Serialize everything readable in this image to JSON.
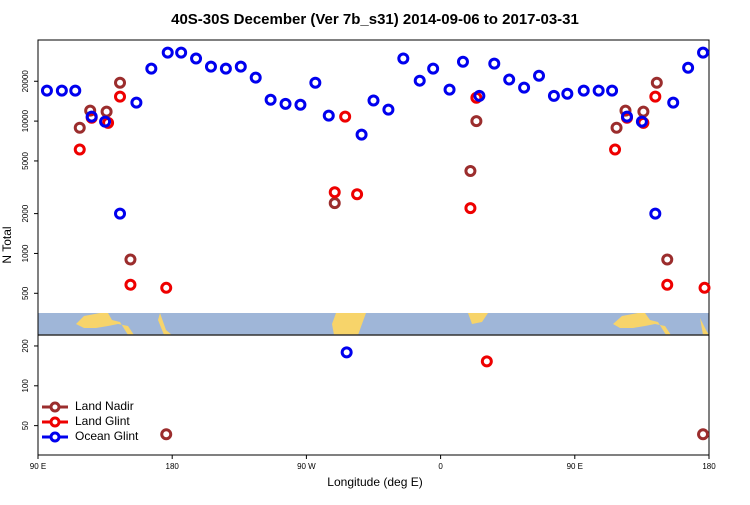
{
  "chart_data": {
    "type": "scatter",
    "title": "40S-30S December (Ver 7b_s31)   2014-09-06 to 2017-03-31",
    "x_label": "Longitude (deg E)",
    "y_label": "N Total",
    "log_y": true,
    "grid": false,
    "legend": "bottom-left",
    "xlim": [
      90,
      540
    ],
    "xticks": [
      {
        "value": 90,
        "label": "90 E"
      },
      180,
      {
        "value": 270,
        "label": "90 W"
      },
      {
        "value": 360,
        "label": "0"
      },
      {
        "value": 450,
        "label": "90 E"
      },
      {
        "value": 540,
        "label": "180"
      }
    ],
    "ylim": [
      30,
      41000
    ],
    "yticks": [
      50,
      100,
      200,
      500,
      1000,
      2000,
      5000,
      10000,
      20000
    ],
    "series": [
      {
        "name": "Land Nadir",
        "color": "#9b2d2d",
        "x": [
          118,
          125,
          136,
          145,
          152,
          176,
          289,
          380,
          384,
          478,
          484,
          496,
          505,
          512,
          536
        ],
        "values": [
          8900,
          12000,
          11800,
          19500,
          900,
          43,
          2400,
          4200,
          10000,
          8900,
          12000,
          11800,
          19500,
          900,
          43
        ]
      },
      {
        "name": "Land Glint",
        "color": "#ee0000",
        "x": [
          118,
          126,
          137,
          145,
          152,
          176,
          289,
          296,
          304,
          380,
          384,
          391,
          477,
          485,
          496,
          504,
          512,
          537
        ],
        "values": [
          6100,
          10600,
          9700,
          15300,
          580,
          550,
          2900,
          10800,
          2800,
          2200,
          15000,
          153,
          6100,
          10600,
          9700,
          15300,
          580,
          550
        ]
      },
      {
        "name": "Ocean Glint",
        "color": "#0000ee",
        "x": [
          96,
          106,
          115,
          126,
          135,
          145,
          156,
          166,
          177,
          186,
          196,
          206,
          216,
          226,
          236,
          246,
          256,
          266,
          276,
          285,
          297,
          307,
          315,
          325,
          335,
          346,
          355,
          366,
          375,
          386,
          396,
          406,
          416,
          426,
          436,
          445,
          456,
          466,
          475,
          485,
          495,
          504,
          516,
          526,
          536
        ],
        "values": [
          17000,
          17000,
          17000,
          10800,
          9900,
          2000,
          13800,
          24900,
          32900,
          32900,
          29700,
          25800,
          24900,
          25800,
          21300,
          14500,
          13500,
          13300,
          19500,
          11000,
          179,
          7900,
          14300,
          12200,
          29700,
          20200,
          24900,
          17300,
          28100,
          15500,
          27200,
          20600,
          17900,
          22000,
          15500,
          16100,
          17000,
          17000,
          17000,
          10800,
          9900,
          2000,
          13800,
          25300,
          32900
        ]
      }
    ]
  }
}
